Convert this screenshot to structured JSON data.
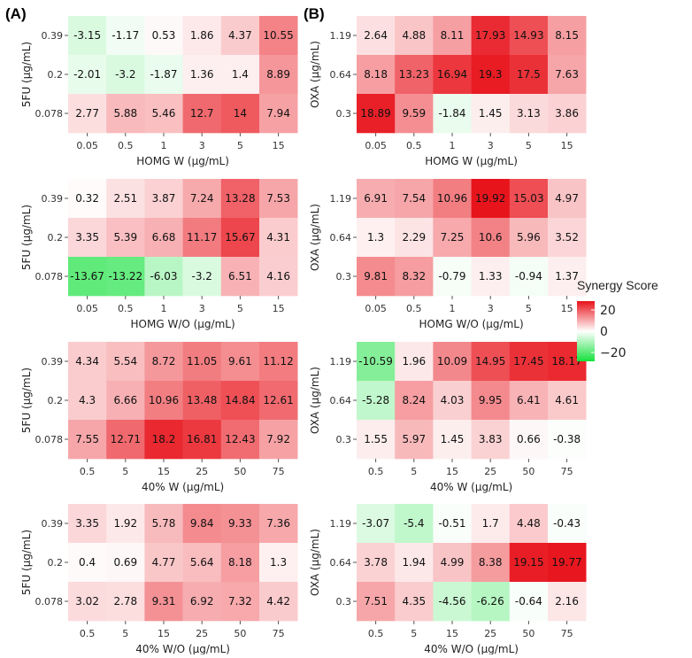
{
  "panels": [
    {
      "label": "(A)",
      "ylabel": "5FU (µg/mL)"
    },
    {
      "label": "(B)",
      "ylabel": "OXA (µg/mL)"
    }
  ],
  "legend": {
    "title": "Synergy Score",
    "ticks": [
      "20",
      "0",
      "−20"
    ],
    "colors": {
      "high": "#e8131b",
      "mid": "#ffffff",
      "low": "#16e13d"
    }
  },
  "chart_data": [
    {
      "type": "heatmap",
      "panel": "(A)",
      "xlabel": "HOMG W (µg/mL)",
      "ylabel": "5FU (µg/mL)",
      "x": [
        "0.05",
        "0.5",
        "1",
        "3",
        "5",
        "15"
      ],
      "y": [
        "0.39",
        "0.2",
        "0.078"
      ],
      "values": [
        [
          -3.15,
          -1.17,
          0.53,
          1.86,
          4.37,
          10.55
        ],
        [
          -2.01,
          -3.2,
          -1.87,
          1.36,
          1.4,
          8.89
        ],
        [
          2.77,
          5.88,
          5.46,
          12.7,
          14,
          7.94
        ]
      ],
      "labels": [
        [
          "-3.15",
          "-1.17",
          "0.53",
          "1.86",
          "4.37",
          "10.55"
        ],
        [
          "-2.01",
          "-3.2",
          "-1.87",
          "1.36",
          "1.4",
          "8.89"
        ],
        [
          "2.77",
          "5.88",
          "5.46",
          "12.7",
          "14",
          "7.94"
        ]
      ]
    },
    {
      "type": "heatmap",
      "panel": "(B)",
      "xlabel": "HOMG W (µg/mL)",
      "ylabel": "OXA (µg/mL)",
      "x": [
        "0.05",
        "0.5",
        "1",
        "3",
        "5",
        "15"
      ],
      "y": [
        "1.19",
        "0.64",
        "0.3"
      ],
      "values": [
        [
          2.64,
          4.88,
          8.11,
          17.93,
          14.93,
          8.15
        ],
        [
          8.18,
          13.23,
          16.94,
          19.3,
          17.5,
          7.63
        ],
        [
          18.89,
          9.59,
          -1.84,
          1.45,
          3.13,
          3.86
        ]
      ],
      "labels": [
        [
          "2.64",
          "4.88",
          "8.11",
          "17.93",
          "14.93",
          "8.15"
        ],
        [
          "8.18",
          "13.23",
          "16.94",
          "19.3",
          "17.5",
          "7.63"
        ],
        [
          "18.89",
          "9.59",
          "-1.84",
          "1.45",
          "3.13",
          "3.86"
        ]
      ]
    },
    {
      "type": "heatmap",
      "panel": "(A)",
      "xlabel": "HOMG W/O (µg/mL)",
      "ylabel": "5FU (µg/mL)",
      "x": [
        "0.05",
        "0.5",
        "1",
        "3",
        "5",
        "15"
      ],
      "y": [
        "0.39",
        "0.2",
        "0.078"
      ],
      "values": [
        [
          0.32,
          2.51,
          3.87,
          7.24,
          13.28,
          7.53
        ],
        [
          3.35,
          5.39,
          6.68,
          11.17,
          15.67,
          4.31
        ],
        [
          -13.67,
          -13.22,
          -6.03,
          -3.2,
          6.51,
          4.16
        ]
      ],
      "labels": [
        [
          "0.32",
          "2.51",
          "3.87",
          "7.24",
          "13.28",
          "7.53"
        ],
        [
          "3.35",
          "5.39",
          "6.68",
          "11.17",
          "15.67",
          "4.31"
        ],
        [
          "-13.67",
          "-13.22",
          "-6.03",
          "-3.2",
          "6.51",
          "4.16"
        ]
      ]
    },
    {
      "type": "heatmap",
      "panel": "(B)",
      "xlabel": "HOMG W/O (µg/mL)",
      "ylabel": "OXA (µg/mL)",
      "x": [
        "0.05",
        "0.5",
        "1",
        "3",
        "5",
        "15"
      ],
      "y": [
        "1.19",
        "0.64",
        "0.3"
      ],
      "values": [
        [
          6.91,
          7.54,
          10.96,
          19.92,
          15.03,
          4.97
        ],
        [
          1.3,
          2.29,
          7.25,
          10.6,
          5.96,
          3.52
        ],
        [
          9.81,
          8.32,
          -0.79,
          1.33,
          -0.94,
          1.37
        ]
      ],
      "labels": [
        [
          "6.91",
          "7.54",
          "10.96",
          "19.92",
          "15.03",
          "4.97"
        ],
        [
          "1.3",
          "2.29",
          "7.25",
          "10.6",
          "5.96",
          "3.52"
        ],
        [
          "9.81",
          "8.32",
          "-0.79",
          "1.33",
          "-0.94",
          "1.37"
        ]
      ]
    },
    {
      "type": "heatmap",
      "panel": "(A)",
      "xlabel": "40% W (µg/mL)",
      "ylabel": "5FU (µg/mL)",
      "x": [
        "0.5",
        "5",
        "15",
        "25",
        "50",
        "75"
      ],
      "y": [
        "0.39",
        "0.2",
        "0.078"
      ],
      "values": [
        [
          4.34,
          5.54,
          8.72,
          11.05,
          9.61,
          11.12
        ],
        [
          4.3,
          6.66,
          10.96,
          13.48,
          14.84,
          12.61
        ],
        [
          7.55,
          12.71,
          18.2,
          16.81,
          12.43,
          7.92
        ]
      ],
      "labels": [
        [
          "4.34",
          "5.54",
          "8.72",
          "11.05",
          "9.61",
          "11.12"
        ],
        [
          "4.3",
          "6.66",
          "10.96",
          "13.48",
          "14.84",
          "12.61"
        ],
        [
          "7.55",
          "12.71",
          "18.2",
          "16.81",
          "12.43",
          "7.92"
        ]
      ]
    },
    {
      "type": "heatmap",
      "panel": "(B)",
      "xlabel": "40% W (µg/mL)",
      "ylabel": "OXA (µg/mL)",
      "x": [
        "0.5",
        "5",
        "15",
        "25",
        "50",
        "75"
      ],
      "y": [
        "1.19",
        "0.64",
        "0.3"
      ],
      "values": [
        [
          -10.59,
          1.96,
          10.09,
          14.95,
          17.45,
          18.17
        ],
        [
          -5.28,
          8.24,
          4.03,
          9.95,
          6.41,
          4.61
        ],
        [
          1.55,
          5.97,
          1.45,
          3.83,
          0.66,
          -0.38
        ]
      ],
      "labels": [
        [
          "-10.59",
          "1.96",
          "10.09",
          "14.95",
          "17.45",
          "18.17"
        ],
        [
          "-5.28",
          "8.24",
          "4.03",
          "9.95",
          "6.41",
          "4.61"
        ],
        [
          "1.55",
          "5.97",
          "1.45",
          "3.83",
          "0.66",
          "-0.38"
        ]
      ]
    },
    {
      "type": "heatmap",
      "panel": "(A)",
      "xlabel": "40% W/O (µg/mL)",
      "ylabel": "5FU (µg/mL)",
      "x": [
        "0.5",
        "5",
        "15",
        "25",
        "50",
        "75"
      ],
      "y": [
        "0.39",
        "0.2",
        "0.078"
      ],
      "values": [
        [
          3.35,
          1.92,
          5.78,
          9.84,
          9.33,
          7.36
        ],
        [
          0.4,
          0.69,
          4.77,
          5.64,
          8.18,
          1.3
        ],
        [
          3.02,
          2.78,
          9.31,
          6.92,
          7.32,
          4.42
        ]
      ],
      "labels": [
        [
          "3.35",
          "1.92",
          "5.78",
          "9.84",
          "9.33",
          "7.36"
        ],
        [
          "0.4",
          "0.69",
          "4.77",
          "5.64",
          "8.18",
          "1.3"
        ],
        [
          "3.02",
          "2.78",
          "9.31",
          "6.92",
          "7.32",
          "4.42"
        ]
      ]
    },
    {
      "type": "heatmap",
      "panel": "(B)",
      "xlabel": "40% W/O (µg/mL)",
      "ylabel": "OXA (µg/mL)",
      "x": [
        "0.5",
        "5",
        "15",
        "25",
        "50",
        "75"
      ],
      "y": [
        "1.19",
        "0.64",
        "0.3"
      ],
      "values": [
        [
          -3.07,
          -5.4,
          -0.51,
          1.7,
          4.48,
          -0.43
        ],
        [
          3.78,
          1.94,
          4.99,
          8.38,
          19.15,
          19.77
        ],
        [
          7.51,
          4.35,
          -4.56,
          -6.26,
          -0.64,
          2.16
        ]
      ],
      "labels": [
        [
          "-3.07",
          "-5.4",
          "-0.51",
          "1.7",
          "4.48",
          "-0.43"
        ],
        [
          "3.78",
          "1.94",
          "4.99",
          "8.38",
          "19.15",
          "19.77"
        ],
        [
          "7.51",
          "4.35",
          "-4.56",
          "-6.26",
          "-0.64",
          "2.16"
        ]
      ]
    }
  ]
}
